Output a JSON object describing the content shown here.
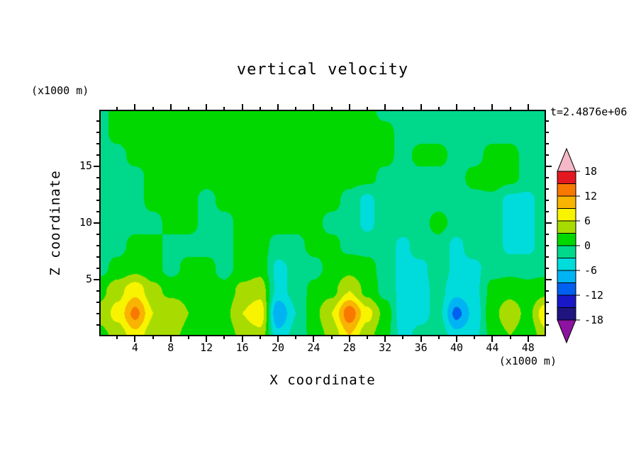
{
  "title": "vertical velocity",
  "time_label": "t=2.4876e+06",
  "x_axis": {
    "label": "X coordinate",
    "unit_label": "(x1000 m)"
  },
  "z_axis": {
    "label": "Z coordinate",
    "unit_label": "(x1000 m)"
  },
  "chart_data": {
    "type": "heatmap",
    "title": "vertical velocity",
    "time_annotation": "t=2.4876e+06",
    "xlabel": "X coordinate",
    "zlabel": "Z coordinate",
    "x_unit": "x1000 m",
    "z_unit": "x1000 m",
    "x_range": [
      0,
      50
    ],
    "z_range": [
      0,
      20
    ],
    "x_ticks": [
      4,
      8,
      12,
      16,
      20,
      24,
      28,
      32,
      36,
      40,
      44,
      48
    ],
    "z_ticks": [
      5,
      10,
      15
    ],
    "x_minor_step": 2,
    "z_minor_step": 1,
    "x": [
      0,
      2,
      4,
      6,
      8,
      10,
      12,
      14,
      16,
      18,
      20,
      22,
      24,
      26,
      28,
      30,
      32,
      34,
      36,
      38,
      40,
      42,
      44,
      46,
      48,
      50
    ],
    "z": [
      20,
      18,
      16,
      14,
      12,
      10,
      8,
      6,
      4,
      2,
      0
    ],
    "values": [
      [
        -1,
        1,
        1,
        1,
        1,
        1,
        1,
        1,
        1,
        1,
        1,
        1,
        1,
        1,
        1,
        1,
        -1,
        -1,
        -1,
        -1,
        -1,
        -1,
        -1,
        -1,
        -1,
        -1
      ],
      [
        -1,
        1,
        2,
        1,
        1,
        2,
        2,
        1,
        1,
        2,
        2,
        2,
        2,
        1,
        1,
        1,
        1,
        -1,
        -1,
        -1,
        -1,
        -1,
        -1,
        -1,
        -1,
        -1
      ],
      [
        -1,
        -1,
        1,
        1,
        1,
        2,
        1,
        1,
        1,
        2,
        2,
        2,
        1,
        1,
        1,
        1,
        1,
        -1,
        1,
        1,
        -1,
        -1,
        1,
        1,
        -1,
        -1
      ],
      [
        -1,
        -1,
        -1,
        1,
        1,
        1,
        1,
        1,
        1,
        1,
        1,
        1,
        1,
        1,
        1,
        1,
        -1,
        -1,
        -1,
        -1,
        -1,
        1,
        2,
        1,
        -1,
        -1
      ],
      [
        -1,
        -1,
        -1,
        1,
        1,
        1,
        -1,
        1,
        1,
        1,
        1,
        1,
        1,
        1,
        -1,
        -4,
        -1,
        -1,
        -1,
        -1,
        -1,
        -1,
        -1,
        -4,
        -4,
        -1
      ],
      [
        -1,
        -1,
        -1,
        -1,
        1,
        1,
        -1,
        -1,
        1,
        1,
        1,
        1,
        1,
        -1,
        -1,
        -4,
        -1,
        -1,
        -1,
        1,
        -1,
        -1,
        -1,
        -4,
        -4,
        -1
      ],
      [
        -1,
        -1,
        1,
        1,
        -1,
        -1,
        -1,
        -1,
        1,
        1,
        -1,
        -1,
        1,
        1,
        -1,
        -1,
        -1,
        -4,
        -1,
        -1,
        -4,
        -1,
        -1,
        -4,
        -4,
        -1
      ],
      [
        -1,
        1,
        2,
        1,
        -1,
        1,
        1,
        -1,
        1,
        2,
        -4,
        -2,
        -1,
        1,
        2,
        1,
        -1,
        -4,
        -4,
        -1,
        -4,
        -4,
        -1,
        -1,
        -1,
        -1
      ],
      [
        2,
        5,
        8,
        4,
        2,
        2,
        1,
        1,
        4,
        5,
        -4,
        -2,
        1,
        2,
        6,
        2,
        -1,
        -4,
        -4,
        -2,
        -5,
        -4,
        1,
        2,
        1,
        2
      ],
      [
        4,
        7,
        13,
        6,
        6,
        3,
        2,
        2,
        6,
        8,
        -9,
        -3,
        2,
        6,
        14,
        7,
        2,
        -5,
        -4,
        -2,
        -10,
        -5,
        2,
        5,
        2,
        8
      ],
      [
        2,
        4,
        8,
        4,
        4,
        2,
        1,
        1,
        4,
        5,
        -5,
        -2,
        1,
        4,
        9,
        4,
        1,
        -4,
        -2,
        -1,
        -5,
        -4,
        1,
        3,
        1,
        5
      ]
    ],
    "levels": [
      -18,
      -15,
      -12,
      -9,
      -6,
      -3,
      0,
      3,
      6,
      9,
      12,
      15,
      18
    ],
    "colors": [
      "#8C14A0",
      "#201480",
      "#1818C8",
      "#0060F0",
      "#00B4F4",
      "#00DCDC",
      "#00D88C",
      "#00D800",
      "#A8DC00",
      "#F8F400",
      "#F8B400",
      "#F87800",
      "#E41820",
      "#F4B8C8"
    ],
    "colorbar_labels": [
      18,
      12,
      6,
      0,
      -6,
      -12,
      -18
    ]
  }
}
